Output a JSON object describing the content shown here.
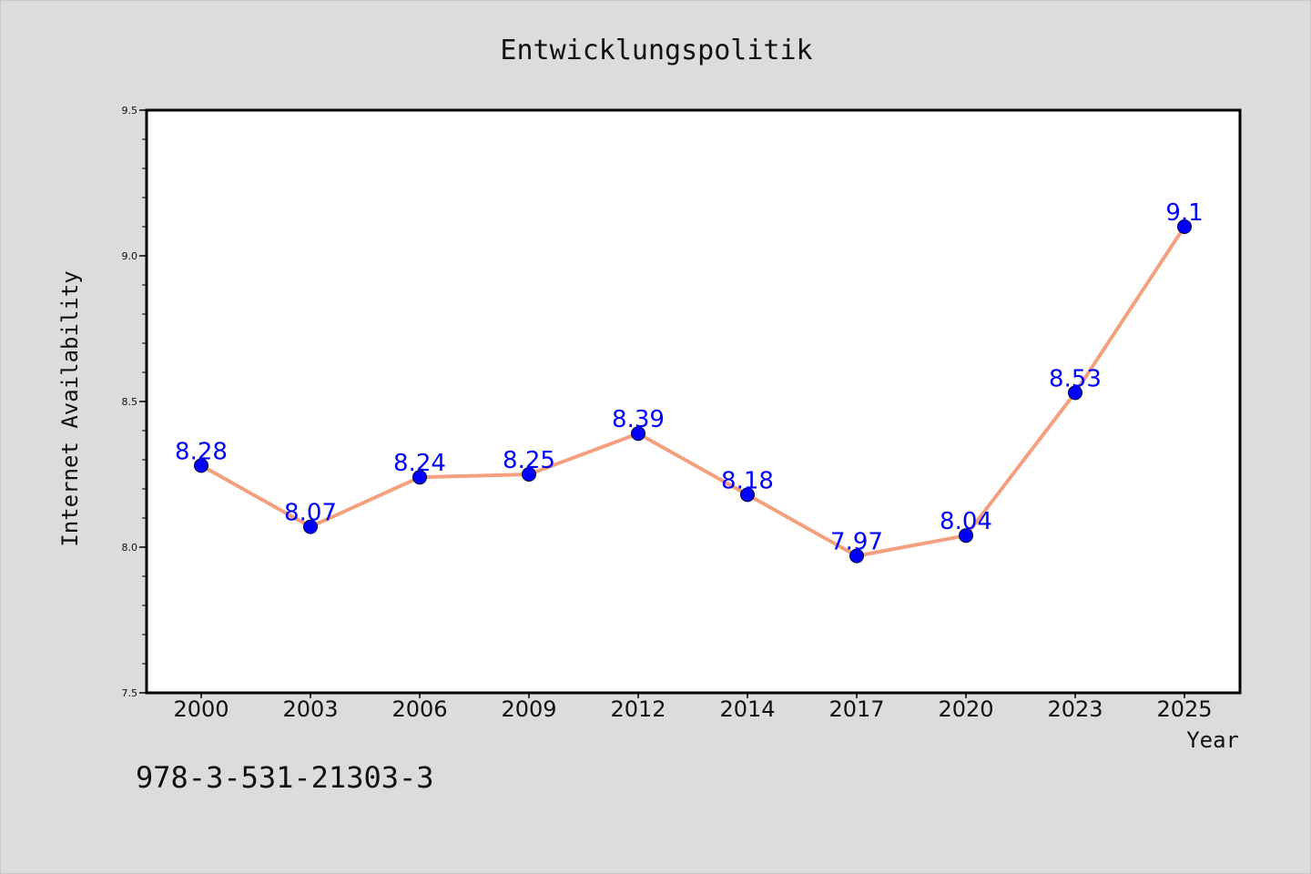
{
  "chart_data": {
    "type": "line",
    "title": "Entwicklungspolitik",
    "xlabel": "Year",
    "ylabel": "Internet Availability",
    "x": [
      "2000",
      "2003",
      "2006",
      "2009",
      "2012",
      "2014",
      "2017",
      "2020",
      "2023",
      "2025"
    ],
    "series": [
      {
        "values": [
          8.28,
          8.07,
          8.24,
          8.25,
          8.39,
          8.18,
          7.97,
          8.04,
          8.53,
          9.1
        ],
        "labels": [
          "8.28",
          "8.07",
          "8.24",
          "8.25",
          "8.39",
          "8.18",
          "7.97",
          "8.04",
          "8.53",
          "9.1"
        ]
      }
    ],
    "ylim": [
      7.5,
      9.5
    ],
    "yticks": [
      "7.5",
      "8.0",
      "8.5",
      "9.0",
      "9.5"
    ],
    "yticks_values": [
      7.5,
      8.0,
      8.5,
      9.0,
      9.5
    ],
    "grid": false,
    "colors": {
      "line": "#f4a07e",
      "marker": "#0000ff",
      "label": "#0000ff",
      "plot_bg": "#ffffff",
      "figure_bg": "#dcdcdc"
    }
  },
  "footer": {
    "isbn": "978-3-531-21303-3"
  }
}
